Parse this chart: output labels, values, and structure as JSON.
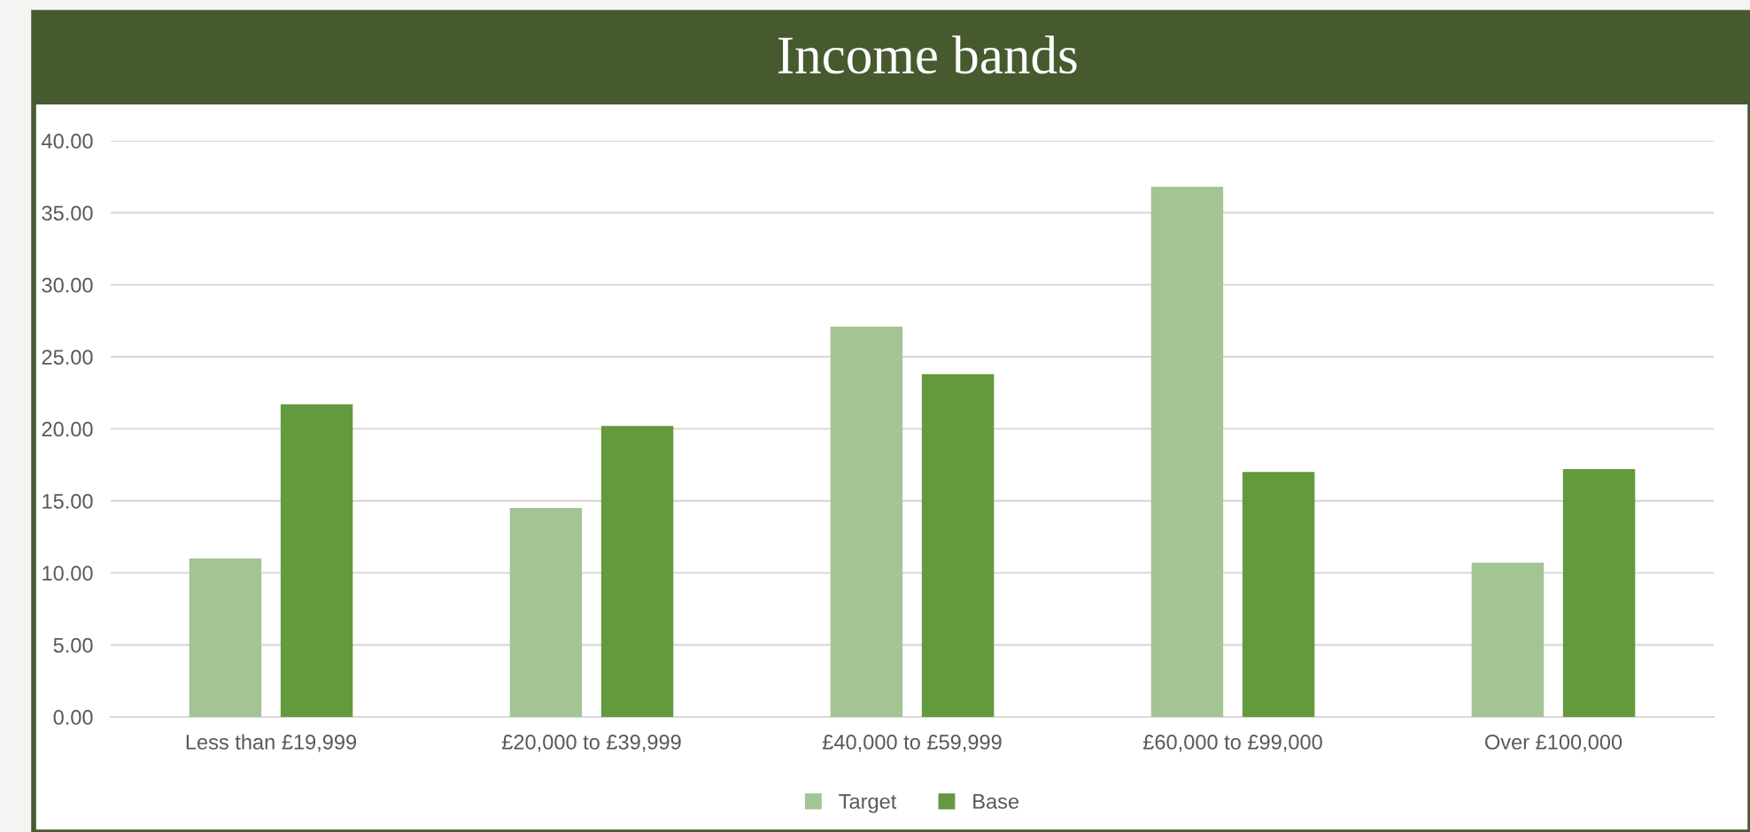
{
  "chart_data": {
    "type": "bar",
    "title": "Income bands",
    "categories": [
      "Less than £19,999",
      "£20,000 to £39,999",
      "£40,000 to £59,999",
      "£60,000 to £99,000",
      "Over £100,000"
    ],
    "series": [
      {
        "name": "Target",
        "color": "#a3c493",
        "values": [
          11.0,
          14.5,
          27.1,
          36.8,
          10.7
        ]
      },
      {
        "name": "Base",
        "color": "#629a3d",
        "values": [
          21.7,
          20.2,
          23.8,
          17.0,
          17.2
        ]
      }
    ],
    "ylim": [
      0,
      40
    ],
    "yticks": [
      {
        "value": 0,
        "label": "0.00"
      },
      {
        "value": 5,
        "label": "5.00"
      },
      {
        "value": 10,
        "label": "10.00"
      },
      {
        "value": 15,
        "label": "15.00"
      },
      {
        "value": 20,
        "label": "20.00"
      },
      {
        "value": 25,
        "label": "25.00"
      },
      {
        "value": 30,
        "label": "30.00"
      },
      {
        "value": 35,
        "label": "35.00"
      },
      {
        "value": 40,
        "label": "40.00"
      }
    ],
    "grid": "y",
    "legend": "bottom"
  }
}
